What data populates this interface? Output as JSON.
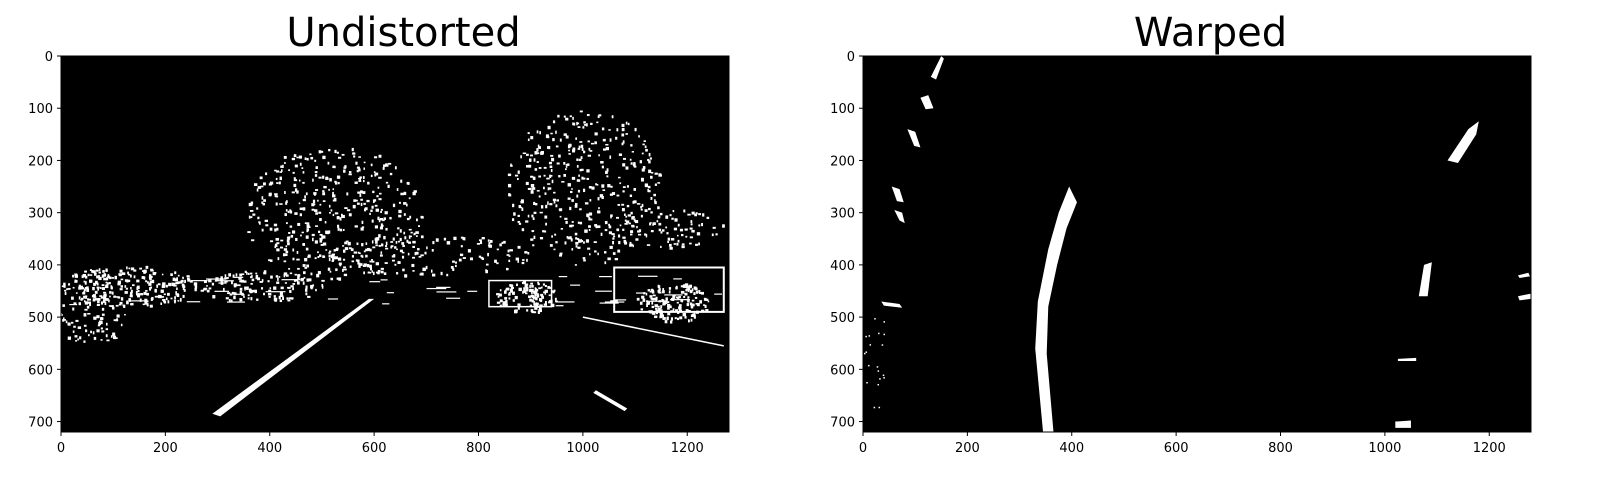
{
  "panels": [
    {
      "title": "Undistorted",
      "xticks": [
        0,
        200,
        400,
        600,
        800,
        1000,
        1200
      ],
      "yticks": [
        0,
        100,
        200,
        300,
        400,
        500,
        600,
        700
      ],
      "xlim": [
        0,
        1280
      ],
      "ylim": [
        720,
        0
      ]
    },
    {
      "title": "Warped",
      "xticks": [
        0,
        200,
        400,
        600,
        800,
        1000,
        1200
      ],
      "yticks": [
        0,
        100,
        200,
        300,
        400,
        500,
        600,
        700
      ],
      "xlim": [
        0,
        1280
      ],
      "ylim": [
        720,
        0
      ]
    }
  ],
  "colors": {
    "background": "#000000",
    "foreground": "#ffffff"
  }
}
